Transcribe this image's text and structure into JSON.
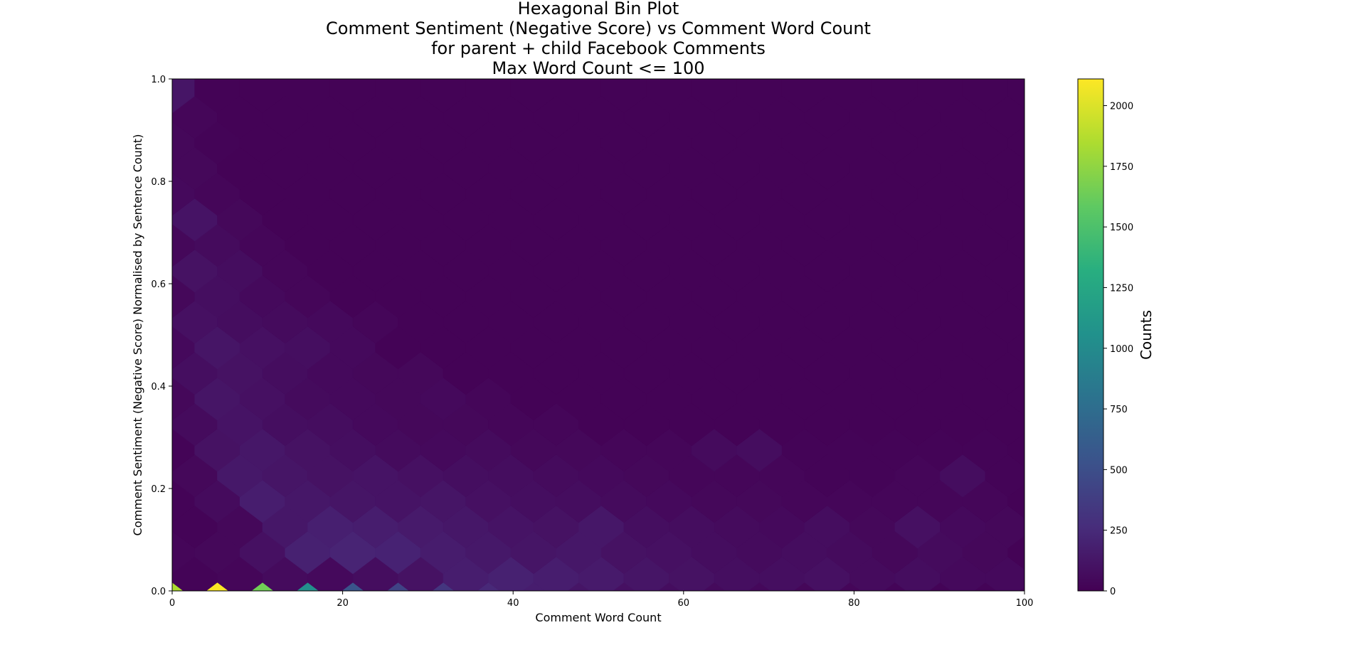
{
  "chart_data": {
    "type": "heatmap",
    "subtype": "hexbin",
    "title_lines": [
      "Hexagonal Bin Plot",
      "Comment Sentiment (Negative Score) vs Comment Word Count",
      "for parent + child Facebook Comments",
      "Max Word Count <= 100"
    ],
    "xlabel": "Comment Word Count",
    "ylabel": "Comment Sentiment (Negative Score) Normalised by Sentence Count)",
    "xlim": [
      0,
      100
    ],
    "ylim": [
      0,
      1.0
    ],
    "x_ticks": [
      0,
      20,
      40,
      60,
      80,
      100
    ],
    "x_tick_labels": [
      "0",
      "20",
      "40",
      "60",
      "80",
      "100"
    ],
    "y_ticks": [
      0.0,
      0.2,
      0.4,
      0.6,
      0.8,
      1.0
    ],
    "y_tick_labels": [
      "0.0",
      "0.2",
      "0.4",
      "0.6",
      "0.8",
      "1.0"
    ],
    "colormap": "viridis",
    "colorbar": {
      "label": "Counts",
      "range": [
        0,
        2110
      ],
      "ticks": [
        0,
        250,
        500,
        750,
        1000,
        1250,
        1500,
        1750,
        2000
      ],
      "tick_labels": [
        "0",
        "250",
        "500",
        "750",
        "1000",
        "1250",
        "1500",
        "1750",
        "2000"
      ]
    },
    "hex_grid": {
      "x_step": 5.3,
      "y_step": 0.1,
      "x_origin": 0,
      "y_origin": 0
    },
    "background_count": 10,
    "bins": [
      {
        "x": 0,
        "y": 0.0,
        "count": 1850
      },
      {
        "x": 5.3,
        "y": 0.0,
        "count": 2100
      },
      {
        "x": 10.6,
        "y": 0.0,
        "count": 1650
      },
      {
        "x": 15.9,
        "y": 0.0,
        "count": 1050
      },
      {
        "x": 21.2,
        "y": 0.0,
        "count": 550
      },
      {
        "x": 26.5,
        "y": 0.0,
        "count": 420
      },
      {
        "x": 31.8,
        "y": 0.0,
        "count": 330
      },
      {
        "x": 37.1,
        "y": 0.0,
        "count": 240
      },
      {
        "x": 42.4,
        "y": 0.0,
        "count": 170
      },
      {
        "x": 47.7,
        "y": 0.0,
        "count": 120
      },
      {
        "x": 53.0,
        "y": 0.0,
        "count": 90
      },
      {
        "x": 58.3,
        "y": 0.0,
        "count": 70
      },
      {
        "x": 63.6,
        "y": 0.0,
        "count": 55
      },
      {
        "x": 68.9,
        "y": 0.0,
        "count": 45
      },
      {
        "x": 74.2,
        "y": 0.0,
        "count": 35
      },
      {
        "x": 79.5,
        "y": 0.0,
        "count": 30
      },
      {
        "x": 84.8,
        "y": 0.0,
        "count": 25
      },
      {
        "x": 90.1,
        "y": 0.0,
        "count": 20
      },
      {
        "x": 95.4,
        "y": 0.0,
        "count": 20
      },
      {
        "x": 100.7,
        "y": 0.0,
        "count": 15
      },
      {
        "x": 2.65,
        "y": 0.05,
        "count": 20
      },
      {
        "x": 7.95,
        "y": 0.05,
        "count": 30
      },
      {
        "x": 13.25,
        "y": 0.05,
        "count": 60
      },
      {
        "x": 18.55,
        "y": 0.05,
        "count": 50
      },
      {
        "x": 23.85,
        "y": 0.05,
        "count": 70
      },
      {
        "x": 29.15,
        "y": 0.05,
        "count": 100
      },
      {
        "x": 34.45,
        "y": 0.05,
        "count": 170
      },
      {
        "x": 39.75,
        "y": 0.05,
        "count": 190
      },
      {
        "x": 45.05,
        "y": 0.05,
        "count": 170
      },
      {
        "x": 50.35,
        "y": 0.05,
        "count": 150
      },
      {
        "x": 55.65,
        "y": 0.05,
        "count": 120
      },
      {
        "x": 60.95,
        "y": 0.05,
        "count": 100
      },
      {
        "x": 66.25,
        "y": 0.05,
        "count": 80
      },
      {
        "x": 71.55,
        "y": 0.05,
        "count": 80
      },
      {
        "x": 76.85,
        "y": 0.05,
        "count": 90
      },
      {
        "x": 82.15,
        "y": 0.05,
        "count": 60
      },
      {
        "x": 87.45,
        "y": 0.05,
        "count": 70
      },
      {
        "x": 92.75,
        "y": 0.05,
        "count": 50
      },
      {
        "x": 98.05,
        "y": 0.05,
        "count": 50
      },
      {
        "x": 0,
        "y": 0.1,
        "count": 30
      },
      {
        "x": 5.3,
        "y": 0.1,
        "count": 40
      },
      {
        "x": 10.6,
        "y": 0.1,
        "count": 90
      },
      {
        "x": 15.9,
        "y": 0.1,
        "count": 190
      },
      {
        "x": 21.2,
        "y": 0.1,
        "count": 210
      },
      {
        "x": 26.5,
        "y": 0.1,
        "count": 200
      },
      {
        "x": 31.8,
        "y": 0.1,
        "count": 160
      },
      {
        "x": 37.1,
        "y": 0.1,
        "count": 140
      },
      {
        "x": 42.4,
        "y": 0.1,
        "count": 120
      },
      {
        "x": 47.7,
        "y": 0.1,
        "count": 130
      },
      {
        "x": 53.0,
        "y": 0.1,
        "count": 100
      },
      {
        "x": 58.3,
        "y": 0.1,
        "count": 90
      },
      {
        "x": 63.6,
        "y": 0.1,
        "count": 70
      },
      {
        "x": 68.9,
        "y": 0.1,
        "count": 60
      },
      {
        "x": 74.2,
        "y": 0.1,
        "count": 70
      },
      {
        "x": 79.5,
        "y": 0.1,
        "count": 60
      },
      {
        "x": 84.8,
        "y": 0.1,
        "count": 40
      },
      {
        "x": 90.1,
        "y": 0.1,
        "count": 60
      },
      {
        "x": 95.4,
        "y": 0.1,
        "count": 40
      },
      {
        "x": 2.65,
        "y": 0.15,
        "count": 20
      },
      {
        "x": 7.95,
        "y": 0.15,
        "count": 40
      },
      {
        "x": 13.25,
        "y": 0.15,
        "count": 130
      },
      {
        "x": 18.55,
        "y": 0.15,
        "count": 180
      },
      {
        "x": 23.85,
        "y": 0.15,
        "count": 170
      },
      {
        "x": 29.15,
        "y": 0.15,
        "count": 150
      },
      {
        "x": 34.45,
        "y": 0.15,
        "count": 130
      },
      {
        "x": 39.75,
        "y": 0.15,
        "count": 110
      },
      {
        "x": 45.05,
        "y": 0.15,
        "count": 100
      },
      {
        "x": 50.35,
        "y": 0.15,
        "count": 130
      },
      {
        "x": 55.65,
        "y": 0.15,
        "count": 80
      },
      {
        "x": 60.95,
        "y": 0.15,
        "count": 70
      },
      {
        "x": 66.25,
        "y": 0.15,
        "count": 60
      },
      {
        "x": 71.55,
        "y": 0.15,
        "count": 50
      },
      {
        "x": 76.85,
        "y": 0.15,
        "count": 70
      },
      {
        "x": 82.15,
        "y": 0.15,
        "count": 40
      },
      {
        "x": 87.45,
        "y": 0.15,
        "count": 90
      },
      {
        "x": 92.75,
        "y": 0.15,
        "count": 50
      },
      {
        "x": 98.05,
        "y": 0.15,
        "count": 40
      },
      {
        "x": 0,
        "y": 0.2,
        "count": 20
      },
      {
        "x": 5.3,
        "y": 0.2,
        "count": 60
      },
      {
        "x": 10.6,
        "y": 0.2,
        "count": 170
      },
      {
        "x": 15.9,
        "y": 0.2,
        "count": 130
      },
      {
        "x": 21.2,
        "y": 0.2,
        "count": 120
      },
      {
        "x": 26.5,
        "y": 0.2,
        "count": 110
      },
      {
        "x": 31.8,
        "y": 0.2,
        "count": 120
      },
      {
        "x": 37.1,
        "y": 0.2,
        "count": 90
      },
      {
        "x": 42.4,
        "y": 0.2,
        "count": 80
      },
      {
        "x": 47.7,
        "y": 0.2,
        "count": 70
      },
      {
        "x": 53.0,
        "y": 0.2,
        "count": 60
      },
      {
        "x": 58.3,
        "y": 0.2,
        "count": 50
      },
      {
        "x": 63.6,
        "y": 0.2,
        "count": 40
      },
      {
        "x": 68.9,
        "y": 0.2,
        "count": 40
      },
      {
        "x": 74.2,
        "y": 0.2,
        "count": 30
      },
      {
        "x": 79.5,
        "y": 0.2,
        "count": 30
      },
      {
        "x": 84.8,
        "y": 0.2,
        "count": 30
      },
      {
        "x": 90.1,
        "y": 0.2,
        "count": 30
      },
      {
        "x": 95.4,
        "y": 0.2,
        "count": 30
      },
      {
        "x": 2.65,
        "y": 0.25,
        "count": 40
      },
      {
        "x": 7.95,
        "y": 0.25,
        "count": 140
      },
      {
        "x": 13.25,
        "y": 0.25,
        "count": 120
      },
      {
        "x": 18.55,
        "y": 0.25,
        "count": 100
      },
      {
        "x": 23.85,
        "y": 0.25,
        "count": 110
      },
      {
        "x": 29.15,
        "y": 0.25,
        "count": 90
      },
      {
        "x": 34.45,
        "y": 0.25,
        "count": 80
      },
      {
        "x": 39.75,
        "y": 0.25,
        "count": 70
      },
      {
        "x": 45.05,
        "y": 0.25,
        "count": 60
      },
      {
        "x": 50.35,
        "y": 0.25,
        "count": 50
      },
      {
        "x": 55.65,
        "y": 0.25,
        "count": 40
      },
      {
        "x": 60.95,
        "y": 0.25,
        "count": 30
      },
      {
        "x": 66.25,
        "y": 0.25,
        "count": 30
      },
      {
        "x": 71.55,
        "y": 0.25,
        "count": 30
      },
      {
        "x": 76.85,
        "y": 0.25,
        "count": 20
      },
      {
        "x": 82.15,
        "y": 0.25,
        "count": 20
      },
      {
        "x": 87.45,
        "y": 0.25,
        "count": 30
      },
      {
        "x": 92.75,
        "y": 0.25,
        "count": 70
      },
      {
        "x": 98.05,
        "y": 0.25,
        "count": 20
      },
      {
        "x": 0,
        "y": 0.3,
        "count": 20
      },
      {
        "x": 5.3,
        "y": 0.3,
        "count": 100
      },
      {
        "x": 10.6,
        "y": 0.3,
        "count": 130
      },
      {
        "x": 15.9,
        "y": 0.3,
        "count": 100
      },
      {
        "x": 21.2,
        "y": 0.3,
        "count": 80
      },
      {
        "x": 26.5,
        "y": 0.3,
        "count": 60
      },
      {
        "x": 31.8,
        "y": 0.3,
        "count": 50
      },
      {
        "x": 37.1,
        "y": 0.3,
        "count": 60
      },
      {
        "x": 42.4,
        "y": 0.3,
        "count": 40
      },
      {
        "x": 47.7,
        "y": 0.3,
        "count": 40
      },
      {
        "x": 53.0,
        "y": 0.3,
        "count": 30
      },
      {
        "x": 58.3,
        "y": 0.3,
        "count": 30
      },
      {
        "x": 63.6,
        "y": 0.3,
        "count": 60
      },
      {
        "x": 68.9,
        "y": 0.3,
        "count": 70
      },
      {
        "x": 74.2,
        "y": 0.3,
        "count": 20
      },
      {
        "x": 79.5,
        "y": 0.3,
        "count": 20
      },
      {
        "x": 84.8,
        "y": 0.3,
        "count": 20
      },
      {
        "x": 90.1,
        "y": 0.3,
        "count": 20
      },
      {
        "x": 95.4,
        "y": 0.3,
        "count": 20
      },
      {
        "x": 2.65,
        "y": 0.35,
        "count": 60
      },
      {
        "x": 7.95,
        "y": 0.35,
        "count": 110
      },
      {
        "x": 13.25,
        "y": 0.35,
        "count": 80
      },
      {
        "x": 18.55,
        "y": 0.35,
        "count": 70
      },
      {
        "x": 23.85,
        "y": 0.35,
        "count": 50
      },
      {
        "x": 29.15,
        "y": 0.35,
        "count": 40
      },
      {
        "x": 34.45,
        "y": 0.35,
        "count": 40
      },
      {
        "x": 39.75,
        "y": 0.35,
        "count": 30
      },
      {
        "x": 45.05,
        "y": 0.35,
        "count": 30
      },
      {
        "x": 0,
        "y": 0.4,
        "count": 40
      },
      {
        "x": 5.3,
        "y": 0.4,
        "count": 120
      },
      {
        "x": 10.6,
        "y": 0.4,
        "count": 90
      },
      {
        "x": 15.9,
        "y": 0.4,
        "count": 60
      },
      {
        "x": 21.2,
        "y": 0.4,
        "count": 50
      },
      {
        "x": 26.5,
        "y": 0.4,
        "count": 40
      },
      {
        "x": 31.8,
        "y": 0.4,
        "count": 50
      },
      {
        "x": 37.1,
        "y": 0.4,
        "count": 30
      },
      {
        "x": 2.65,
        "y": 0.45,
        "count": 80
      },
      {
        "x": 7.95,
        "y": 0.45,
        "count": 100
      },
      {
        "x": 13.25,
        "y": 0.45,
        "count": 70
      },
      {
        "x": 18.55,
        "y": 0.45,
        "count": 50
      },
      {
        "x": 23.85,
        "y": 0.45,
        "count": 40
      },
      {
        "x": 29.15,
        "y": 0.45,
        "count": 40
      },
      {
        "x": 0,
        "y": 0.5,
        "count": 50
      },
      {
        "x": 5.3,
        "y": 0.5,
        "count": 120
      },
      {
        "x": 10.6,
        "y": 0.5,
        "count": 90
      },
      {
        "x": 15.9,
        "y": 0.5,
        "count": 80
      },
      {
        "x": 21.2,
        "y": 0.5,
        "count": 50
      },
      {
        "x": 2.65,
        "y": 0.55,
        "count": 90
      },
      {
        "x": 7.95,
        "y": 0.55,
        "count": 70
      },
      {
        "x": 13.25,
        "y": 0.55,
        "count": 60
      },
      {
        "x": 18.55,
        "y": 0.55,
        "count": 50
      },
      {
        "x": 23.85,
        "y": 0.55,
        "count": 30
      },
      {
        "x": 0,
        "y": 0.6,
        "count": 40
      },
      {
        "x": 5.3,
        "y": 0.6,
        "count": 80
      },
      {
        "x": 10.6,
        "y": 0.6,
        "count": 50
      },
      {
        "x": 15.9,
        "y": 0.6,
        "count": 30
      },
      {
        "x": 2.65,
        "y": 0.65,
        "count": 100
      },
      {
        "x": 7.95,
        "y": 0.65,
        "count": 70
      },
      {
        "x": 13.25,
        "y": 0.65,
        "count": 30
      },
      {
        "x": 0,
        "y": 0.7,
        "count": 40
      },
      {
        "x": 5.3,
        "y": 0.7,
        "count": 60
      },
      {
        "x": 10.6,
        "y": 0.7,
        "count": 30
      },
      {
        "x": 2.65,
        "y": 0.75,
        "count": 110
      },
      {
        "x": 7.95,
        "y": 0.75,
        "count": 40
      },
      {
        "x": 0,
        "y": 0.8,
        "count": 50
      },
      {
        "x": 5.3,
        "y": 0.8,
        "count": 30
      },
      {
        "x": 2.65,
        "y": 0.85,
        "count": 40
      },
      {
        "x": 0,
        "y": 0.9,
        "count": 40
      },
      {
        "x": 5.3,
        "y": 0.9,
        "count": 20
      },
      {
        "x": 2.65,
        "y": 0.95,
        "count": 30
      },
      {
        "x": 0,
        "y": 1.0,
        "count": 120
      }
    ]
  }
}
